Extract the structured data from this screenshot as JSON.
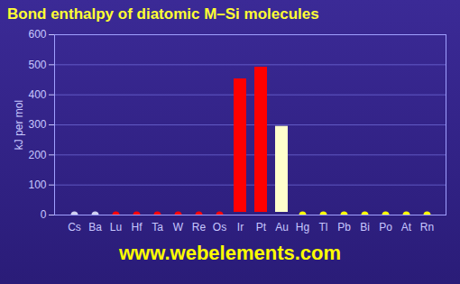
{
  "chart_data": {
    "type": "bar",
    "title": "Bond enthalpy of diatomic M–Si molecules",
    "caption": "www.webelements.com",
    "y_label": "kJ per mol",
    "categories": [
      "Cs",
      "Ba",
      "Lu",
      "Hf",
      "Ta",
      "W",
      "Re",
      "Os",
      "Ir",
      "Pt",
      "Au",
      "Hg",
      "Tl",
      "Pb",
      "Bi",
      "Po",
      "At",
      "Rn"
    ],
    "values": [
      null,
      null,
      null,
      null,
      null,
      null,
      null,
      null,
      462,
      501,
      304,
      null,
      null,
      null,
      null,
      null,
      null,
      null
    ],
    "colors": [
      "#d0d0f0",
      "#d0d0f0",
      "#ff0000",
      "#ff0000",
      "#ff0000",
      "#ff0000",
      "#ff0000",
      "#ff0000",
      "#ff0000",
      "#ff0000",
      "#ffffcc",
      "#ffff00",
      "#ffff00",
      "#ffff00",
      "#ffff00",
      "#ffff00",
      "#ffff00",
      "#ffff00"
    ],
    "ylim": [
      0,
      600
    ],
    "yticks": [
      0,
      100,
      200,
      300,
      400,
      500,
      600
    ],
    "grid": true
  }
}
